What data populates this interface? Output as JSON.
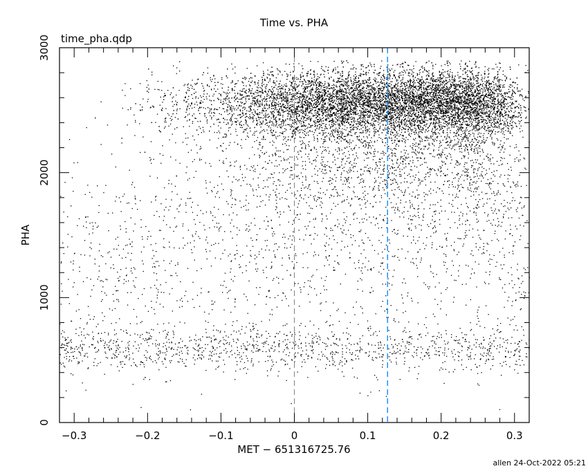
{
  "chart_data": {
    "type": "scatter",
    "title": "Time vs. PHA",
    "subtitle": "time_pha.qdp",
    "xlabel": "MET − 651316725.76",
    "ylabel": "PHA",
    "xlim": [
      -0.32,
      0.32
    ],
    "ylim": [
      0,
      3000
    ],
    "x_ticks": [
      -0.3,
      -0.2,
      -0.1,
      0,
      0.1,
      0.2,
      0.3
    ],
    "x_tick_labels": [
      "−0.3",
      "−0.2",
      "−0.1",
      "0",
      "0.1",
      "0.2",
      "0.3"
    ],
    "y_ticks": [
      0,
      1000,
      2000,
      3000
    ],
    "y_tick_labels": [
      "0",
      "1000",
      "2000",
      "3000"
    ],
    "grid": false,
    "point_color": "#000000",
    "markers": [
      {
        "x": 0,
        "color": "#808080",
        "style": "dashed"
      },
      {
        "x": 0.127,
        "color": "#1e90ff",
        "style": "dashed"
      }
    ],
    "point_clusters": [
      {
        "pha_center": 2560,
        "pha_spread": 130,
        "share": 0.62,
        "density_trend": "increasing with time"
      },
      {
        "pha_center": 2200,
        "pha_spread": 350,
        "share": 0.2,
        "density_trend": "increasing with time"
      },
      {
        "pha_center": 1300,
        "pha_spread": 450,
        "share": 0.1,
        "density_trend": "flat"
      },
      {
        "pha_center": 590,
        "pha_spread": 90,
        "share": 0.08,
        "density_trend": "flat"
      }
    ]
  },
  "footer": {
    "credit": "allen 24-Oct-2022 05:21"
  }
}
